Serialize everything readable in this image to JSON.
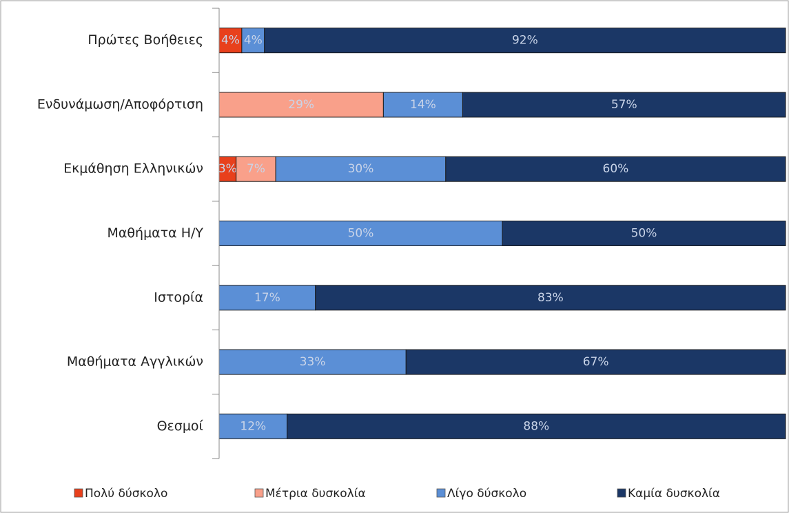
{
  "chart_data": {
    "type": "stacked-bar-horizontal",
    "categories": [
      "Πρώτες Βοήθειες",
      "Ενδυνάμωση/Αποφόρτιση",
      "Εκμάθηση Ελληνικών",
      "Μαθήματα Η/Υ",
      "Ιστορία",
      "Μαθήματα Αγγλικών",
      "Θεσμοί"
    ],
    "series": [
      {
        "name": "Πολύ δύσκολο",
        "color": "#e8401c",
        "values": [
          4,
          null,
          3,
          null,
          null,
          null,
          null
        ],
        "value_labels": [
          "4%",
          null,
          "3%",
          null,
          null,
          null,
          null
        ]
      },
      {
        "name": "Μέτρια δυσκολία",
        "color": "#f9a08a",
        "values": [
          null,
          29,
          7,
          null,
          null,
          null,
          null
        ],
        "value_labels": [
          null,
          "29%",
          "7%",
          null,
          null,
          null,
          null
        ]
      },
      {
        "name": "Λίγο δύσκολο",
        "color": "#5b8fd6",
        "values": [
          4,
          14,
          30,
          50,
          17,
          33,
          12
        ],
        "value_labels": [
          "4%",
          "14%",
          "30%",
          "50%",
          "17%",
          "33%",
          "12%"
        ]
      },
      {
        "name": "Καμία δυσκολία",
        "color": "#1b3766",
        "values": [
          92,
          57,
          60,
          50,
          83,
          67,
          88
        ],
        "value_labels": [
          "92%",
          "57%",
          "60%",
          "50%",
          "83%",
          "67%",
          "88%"
        ]
      }
    ],
    "xlim": [
      0,
      100
    ],
    "legend": "bottom"
  }
}
